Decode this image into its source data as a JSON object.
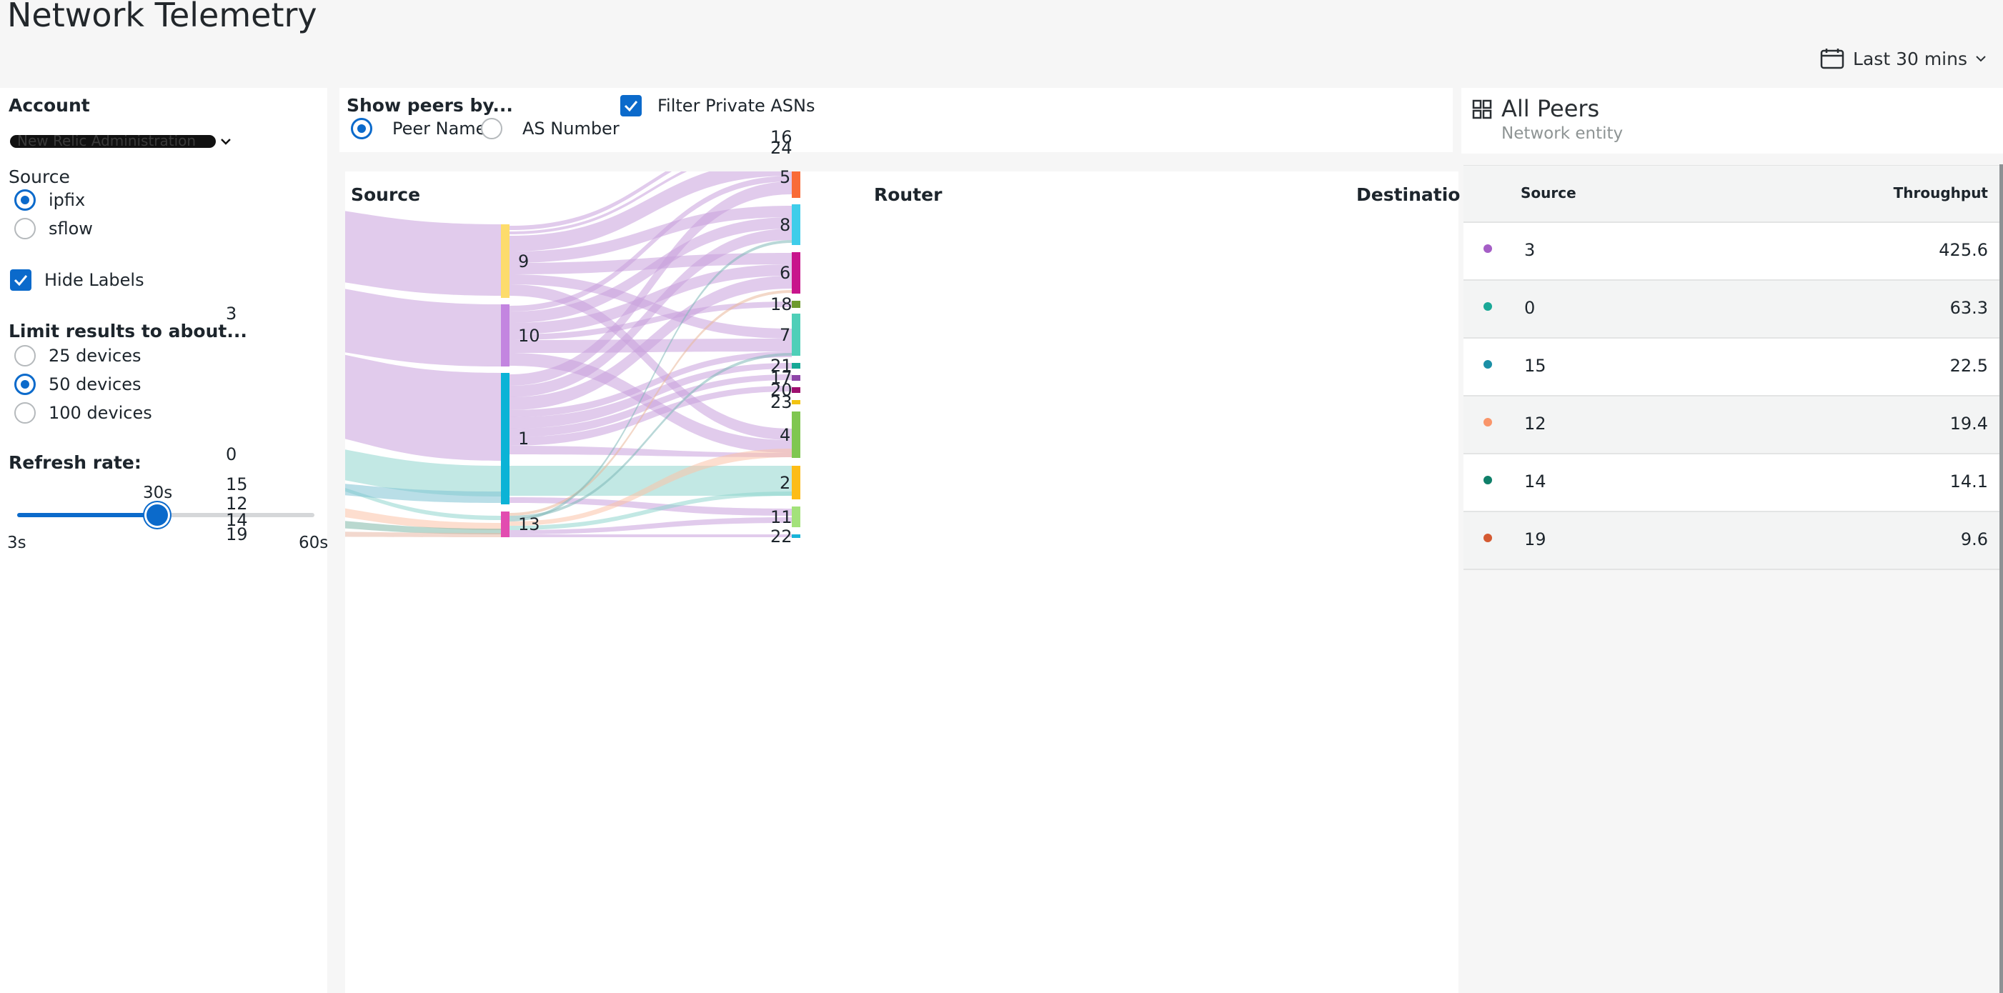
{
  "page": {
    "title": "Network Telemetry"
  },
  "timepicker": {
    "label": "Last 30 mins",
    "icon": "calendar-icon"
  },
  "filters": {
    "account": {
      "label": "Account",
      "value": "New Relic Administration"
    },
    "source": {
      "label": "Source",
      "options": [
        "ipfix",
        "sflow"
      ],
      "selected": "ipfix"
    },
    "hide_labels": {
      "label": "Hide Labels",
      "checked": true
    },
    "limit": {
      "label": "Limit results to about...",
      "options": [
        "25 devices",
        "50 devices",
        "100 devices"
      ],
      "selected": "50 devices"
    },
    "refresh": {
      "label": "Refresh rate:",
      "value": "30s",
      "min": "3s",
      "max": "60s",
      "fraction": 0.47
    }
  },
  "controls": {
    "show_peers_label": "Show peers by...",
    "peer_options": [
      "Peer Name",
      "AS Number"
    ],
    "selected_peer_option": "Peer Name",
    "filter_private": {
      "label": "Filter Private ASNs",
      "checked": true
    }
  },
  "sankey": {
    "headers": {
      "source": "Source",
      "router": "Router",
      "destination": "Destination"
    },
    "source_nodes": [
      {
        "label": "3",
        "color": "#a55ec6"
      },
      {
        "label": "0",
        "color": "#1aa897"
      },
      {
        "label": "15",
        "color": "#1b8fa6"
      },
      {
        "label": "12",
        "color": "#f9956a"
      },
      {
        "label": "14",
        "color": "#0f7f69"
      },
      {
        "label": "19",
        "color": "#d45a32"
      }
    ],
    "router_nodes": [
      {
        "label": "9",
        "color": "#fddc6c"
      },
      {
        "label": "10",
        "color": "#c385e0"
      },
      {
        "label": "1",
        "color": "#0bb3d6"
      },
      {
        "label": "13",
        "color": "#e24cb0"
      }
    ],
    "destination_nodes": [
      {
        "label": "16",
        "color": "#c9a30f"
      },
      {
        "label": "24",
        "color": "#b562d6"
      },
      {
        "label": "5",
        "color": "#f96b38"
      },
      {
        "label": "8",
        "color": "#3fcdea"
      },
      {
        "label": "6",
        "color": "#c8158c"
      },
      {
        "label": "18",
        "color": "#6e9a2f"
      },
      {
        "label": "7",
        "color": "#4fcfb8"
      },
      {
        "label": "21",
        "color": "#17a896"
      },
      {
        "label": "17",
        "color": "#8e45a8"
      },
      {
        "label": "20",
        "color": "#9e0f6f"
      },
      {
        "label": "23",
        "color": "#f2c311"
      },
      {
        "label": "4",
        "color": "#7fc750"
      },
      {
        "label": "2",
        "color": "#fdbc17"
      },
      {
        "label": "11",
        "color": "#a3e27a"
      },
      {
        "label": "22",
        "color": "#19b4d8"
      }
    ]
  },
  "peers": {
    "title": "All Peers",
    "subtitle": "Network entity",
    "icon": "grid-icon",
    "columns": [
      "Source",
      "Throughput"
    ],
    "rows": [
      {
        "source": "3",
        "throughput": "425.6",
        "color": "#a55ec6"
      },
      {
        "source": "0",
        "throughput": "63.3",
        "color": "#1aa897"
      },
      {
        "source": "15",
        "throughput": "22.5",
        "color": "#1b8fa6"
      },
      {
        "source": "12",
        "throughput": "19.4",
        "color": "#f9956a"
      },
      {
        "source": "14",
        "throughput": "14.1",
        "color": "#0f7f69"
      },
      {
        "source": "19",
        "throughput": "9.6",
        "color": "#d45a32"
      }
    ]
  }
}
